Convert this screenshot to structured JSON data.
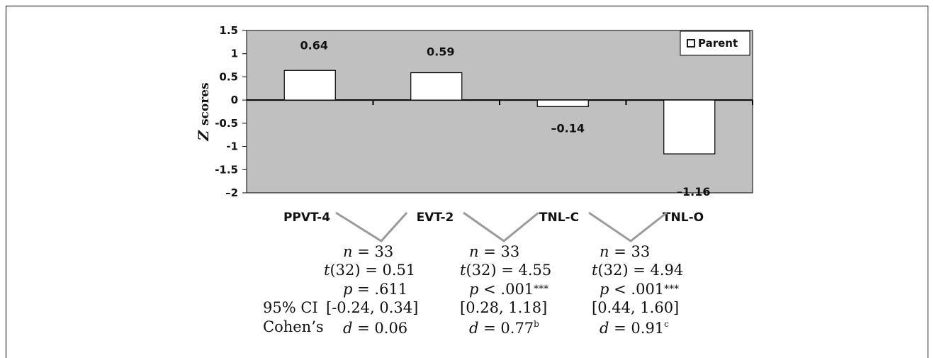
{
  "chart_data": {
    "type": "bar",
    "categories": [
      "PPVT-4",
      "EVT-2",
      "TNL-C",
      "TNL-O"
    ],
    "series": [
      {
        "name": "Parent",
        "values": [
          0.64,
          0.59,
          -0.14,
          -1.16
        ]
      }
    ],
    "data_labels": [
      "0.64",
      "0.59",
      "–0.14",
      "–1.16"
    ],
    "ylabel_italic": "Z",
    "ylabel_rest": "scores",
    "ylim": [
      -2,
      1.5
    ],
    "yticks": [
      1.5,
      1,
      0.5,
      0,
      -0.5,
      -1,
      -1.5,
      -2
    ],
    "ytick_labels": [
      "1.5",
      "1",
      "0.5",
      "0",
      "-0.5",
      "-1",
      "-1.5",
      "–2"
    ],
    "legend_position": "top-right",
    "grid": false
  },
  "colors": {
    "plot_background": "#c0c0c0",
    "bar_fill": "#ffffff",
    "connector_line": "#9a9a9a",
    "axis": "#000000"
  },
  "comparisons": [
    {
      "n_label": "n",
      "n_value": "= 33",
      "t_label": "t",
      "t_value": "(32) = 0.51",
      "p_label": "p",
      "p_value": "= .611",
      "p_stars": "",
      "ci": "[-0.24, 0.34]",
      "d_label": "d",
      "d_value": "= 0.06",
      "d_sup": ""
    },
    {
      "n_label": "n",
      "n_value": "= 33",
      "t_label": "t",
      "t_value": "(32) = 4.55",
      "p_label": "p",
      "p_value": "< .001",
      "p_stars": "***",
      "ci": "[0.28, 1.18]",
      "d_label": "d",
      "d_value": "= 0.77",
      "d_sup": "b"
    },
    {
      "n_label": "n",
      "n_value": "= 33",
      "t_label": "t",
      "t_value": "(32) = 4.94",
      "p_label": "p",
      "p_value": "< .001",
      "p_stars": "***",
      "ci": "[0.44, 1.60]",
      "d_label": "d",
      "d_value": "= 0.91",
      "d_sup": "c"
    }
  ],
  "row_labels": {
    "ci": "95% CI",
    "cohens": "Cohen’s"
  }
}
